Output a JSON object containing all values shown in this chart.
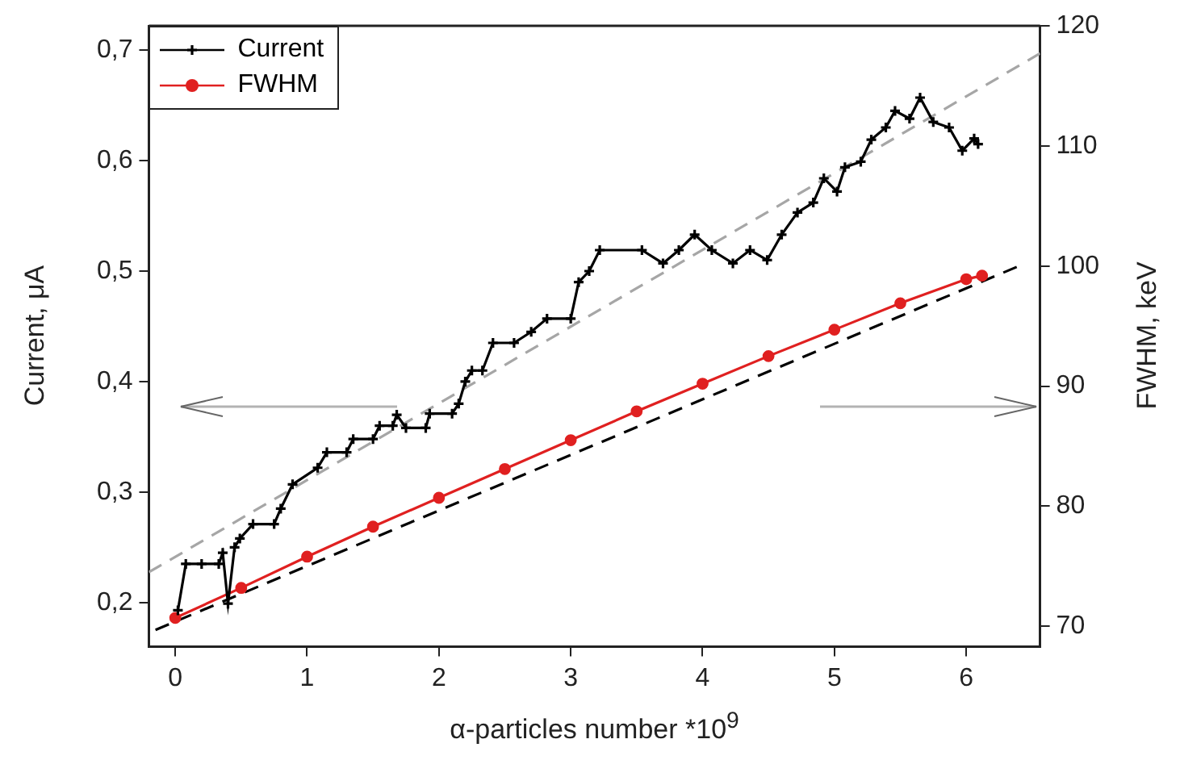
{
  "chart_data": {
    "type": "line",
    "xlabel": "α-particles number *10$^{9}$",
    "ylabel": "Current, μA",
    "y2label": "FWHM, keV",
    "xlim": [
      -0.2,
      6.56
    ],
    "xticks": [
      0,
      1,
      2,
      3,
      4,
      5,
      6
    ],
    "ylim": [
      0.16,
      0.722
    ],
    "yticks": [
      {
        "value": 0.2,
        "label": "0,2"
      },
      {
        "value": 0.3,
        "label": "0,3"
      },
      {
        "value": 0.4,
        "label": "0,4"
      },
      {
        "value": 0.5,
        "label": "0,5"
      },
      {
        "value": 0.6,
        "label": "0,6"
      },
      {
        "value": 0.7,
        "label": "0,7"
      }
    ],
    "y2lim": [
      68.3,
      120
    ],
    "y2ticks": [
      70,
      80,
      90,
      100,
      110,
      120
    ],
    "grid": false,
    "legend": "top left",
    "series": [
      {
        "name": "Current",
        "color": "#000000",
        "marker": "cross",
        "axis": "y",
        "x": [
          0.02,
          0.08,
          0.2,
          0.33,
          0.36,
          0.4,
          0.45,
          0.49,
          0.59,
          0.75,
          0.8,
          0.89,
          1.08,
          1.15,
          1.3,
          1.35,
          1.5,
          1.55,
          1.65,
          1.68,
          1.75,
          1.9,
          1.93,
          2.1,
          2.15,
          2.2,
          2.25,
          2.33,
          2.41,
          2.57,
          2.7,
          2.82,
          3.0,
          3.06,
          3.14,
          3.22,
          3.54,
          3.7,
          3.82,
          3.94,
          4.07,
          4.23,
          4.36,
          4.49,
          4.6,
          4.72,
          4.84,
          4.92,
          5.02,
          5.08,
          5.2,
          5.28,
          5.39,
          5.46,
          5.57,
          5.65,
          5.75,
          5.87,
          5.97,
          6.06,
          6.09
        ],
        "values": [
          0.193,
          0.235,
          0.235,
          0.235,
          0.245,
          0.199,
          0.25,
          0.258,
          0.271,
          0.271,
          0.285,
          0.307,
          0.322,
          0.336,
          0.336,
          0.348,
          0.348,
          0.36,
          0.36,
          0.37,
          0.358,
          0.358,
          0.371,
          0.371,
          0.38,
          0.4,
          0.41,
          0.41,
          0.435,
          0.435,
          0.445,
          0.457,
          0.457,
          0.49,
          0.5,
          0.519,
          0.519,
          0.507,
          0.519,
          0.533,
          0.519,
          0.507,
          0.519,
          0.51,
          0.533,
          0.553,
          0.562,
          0.584,
          0.572,
          0.594,
          0.599,
          0.619,
          0.63,
          0.645,
          0.638,
          0.657,
          0.635,
          0.63,
          0.609,
          0.62,
          0.615
        ]
      },
      {
        "name": "FWHM",
        "color": "#e02020",
        "marker": "circle",
        "axis": "y2",
        "x": [
          0,
          0.5,
          1,
          1.5,
          2,
          2.5,
          3,
          3.5,
          4,
          4.5,
          5,
          5.5,
          6,
          6.12
        ],
        "values": [
          70.7,
          73.2,
          75.8,
          78.3,
          80.7,
          83.1,
          85.5,
          87.9,
          90.2,
          92.5,
          94.7,
          96.9,
          98.9,
          99.2
        ]
      },
      {
        "color": "#a6a6a6",
        "marker": "none",
        "line_style": "dashed",
        "axis": "y",
        "x": [
          -0.2,
          6.56
        ],
        "values": [
          0.2275,
          0.697
        ]
      },
      {
        "color": "#000000",
        "marker": "none",
        "line_style": "dashed",
        "axis": "y2",
        "x": [
          -0.15,
          6.4
        ],
        "values": [
          69.7,
          100
        ]
      }
    ]
  }
}
